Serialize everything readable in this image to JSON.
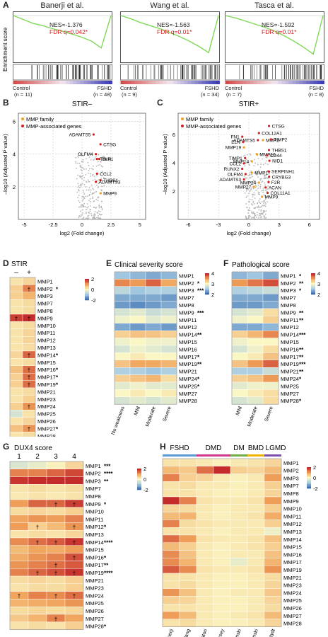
{
  "panels": {
    "a": "A",
    "b": "B",
    "c": "C",
    "d": "D",
    "e": "E",
    "f": "F",
    "g": "G",
    "h": "H"
  },
  "gsea": {
    "ylabel": "Enrichment score",
    "control_label": "Control",
    "fshd_label": "FSHD",
    "plots": [
      {
        "title": "Banerji et al.",
        "nes": "NES=-1.376",
        "fdr": "FDR q=0.042*",
        "n_control": "(n = 11)",
        "n_fshd": "(n = 48)"
      },
      {
        "title": "Wang et al.",
        "nes": "NES=-1.563",
        "fdr": "FDR q=0.01*",
        "n_control": "(n = 9)",
        "n_fshd": "(n = 34)"
      },
      {
        "title": "Tasca et al.",
        "nes": "NES=-1.592",
        "fdr": "FDR q=0.01*",
        "n_control": "(n = 7)",
        "n_fshd": "(n = 8)"
      }
    ]
  },
  "volcano": {
    "ylabel": "–log10 (Adjusted P value)",
    "xlabel": "log2 (Fold change)",
    "legend_family": "MMP family",
    "legend_assoc": "MMP-associated genes",
    "b": {
      "title": "STIR–",
      "xticks": [
        "-5",
        "-2.5",
        "0",
        "2.5",
        "5"
      ],
      "yticks": [
        "2",
        "4",
        "6"
      ],
      "labels": [
        "ADAMTS5",
        "CTSG",
        "OLFM4",
        "TIMP1",
        "ELN",
        "CCL2",
        "THBS1",
        "ADAMTS3",
        "MMP9"
      ]
    },
    "c": {
      "title": "STIR+",
      "xticks": [
        "-6",
        "-3",
        "0",
        "3",
        "6"
      ],
      "yticks": [
        "2",
        "4",
        "6"
      ],
      "labels": [
        "CTSG",
        "COL12A1",
        "ADAMTS5",
        "MMP2",
        "FN1",
        "TIMP2",
        "ELN",
        "MMP16",
        "MMP19",
        "THBS1",
        "MMP14",
        "CD44",
        "TIMP1",
        "NID1",
        "CCL2",
        "MMP17",
        "RUNX2",
        "SERPINH1",
        "OLFM4",
        "CRYBG3",
        "ADAMTS3",
        "F2R",
        "MMP24",
        "ACAN",
        "MMP27",
        "COL11A1",
        "MMP9"
      ]
    }
  },
  "genes": [
    "MMP1",
    "MMP2",
    "MMP3",
    "MMP7",
    "MMP8",
    "MMP9",
    "MMP10",
    "MMP11",
    "MMP12",
    "MMP13",
    "MMP14",
    "MMP15",
    "MMP16",
    "MMP17",
    "MMP19",
    "MMP21",
    "MMP23",
    "MMP24",
    "MMP25",
    "MMP26",
    "MMP27",
    "MMP28"
  ],
  "genes_e": [
    "MMP1",
    "MMP2",
    "MMP3",
    "MMP7",
    "MMP8",
    "MMP9",
    "MMP11",
    "MMP12",
    "MMP14",
    "MMP15",
    "MMP16",
    "MMP17",
    "MMP19",
    "MMP21",
    "MMP24",
    "MMP25",
    "MMP27",
    "MMP28"
  ],
  "heat_d": {
    "title": "STIR",
    "cols": [
      "–",
      "+"
    ],
    "stars": [
      "",
      "*",
      "",
      "",
      "",
      "",
      "",
      "",
      "",
      "",
      "*",
      "",
      "*",
      "*",
      "*",
      "",
      "",
      "",
      "",
      "",
      "*",
      ""
    ],
    "legend": [
      "2",
      "0",
      "-2"
    ]
  },
  "heat_e": {
    "title": "Clinical severity score",
    "cols": [
      "No weakness",
      "Mild",
      "Moderate",
      "Severe"
    ],
    "stars": [
      "",
      "*",
      "***",
      "",
      "",
      "***",
      "",
      "",
      "**",
      "",
      "",
      "*",
      "**",
      "",
      "*",
      "*",
      "",
      ""
    ],
    "legend": [
      "4",
      "3",
      "2"
    ]
  },
  "heat_f": {
    "title": "Pathological score",
    "cols": [
      "Mild",
      "Moderate",
      "Severe"
    ],
    "stars": [
      "*",
      "**",
      "*",
      "",
      "",
      "**",
      "**",
      "",
      "***",
      "",
      "**",
      "**",
      "***",
      "**",
      "*",
      "",
      "",
      "*"
    ],
    "legend": [
      "4",
      "3",
      "2"
    ]
  },
  "heat_g": {
    "title": "DUX4 score",
    "cols": [
      "1",
      "2",
      "3",
      "4"
    ],
    "stars": [
      "***",
      "****",
      "**",
      "",
      "",
      "*",
      "",
      "",
      "*",
      "",
      "****",
      "",
      "*",
      "**",
      "****",
      "",
      "",
      "",
      "",
      "",
      "",
      "*"
    ],
    "legend": [
      "2",
      "0",
      "-2"
    ]
  },
  "heat_h": {
    "groups": [
      "FSHD",
      "DMD",
      "DM",
      "BMD",
      "LGMD"
    ],
    "cols": [
      "Banerji",
      "Wang",
      "Pescatori",
      "Dorsey",
      "Bachinski",
      "Bachinski",
      "Deputydt"
    ],
    "legend": [
      "2",
      "0",
      "-2"
    ]
  },
  "chart_data": [
    {
      "type": "line",
      "title": "Banerji et al.",
      "ylabel": "Enrichment score",
      "annotations": [
        "NES=-1.376",
        "FDR q=0.042*"
      ],
      "x": [
        0,
        0.1,
        0.2,
        0.3,
        0.4,
        0.5,
        0.6,
        0.7,
        0.8,
        0.9,
        1.0
      ],
      "values": [
        0,
        -0.05,
        -0.1,
        -0.13,
        -0.17,
        -0.2,
        -0.24,
        -0.28,
        -0.33,
        -0.42,
        0
      ]
    },
    {
      "type": "line",
      "title": "Wang et al.",
      "annotations": [
        "NES=-1.563",
        "FDR q=0.01*"
      ],
      "x": [
        0,
        0.1,
        0.2,
        0.3,
        0.4,
        0.5,
        0.6,
        0.7,
        0.8,
        0.9,
        1.0
      ],
      "values": [
        0,
        -0.04,
        -0.09,
        -0.13,
        -0.17,
        -0.22,
        -0.27,
        -0.33,
        -0.4,
        -0.48,
        0
      ]
    },
    {
      "type": "line",
      "title": "Tasca et al.",
      "annotations": [
        "NES=-1.592",
        "FDR q=0.01*"
      ],
      "x": [
        0,
        0.1,
        0.2,
        0.3,
        0.4,
        0.5,
        0.6,
        0.7,
        0.8,
        0.9,
        1.0
      ],
      "values": [
        0,
        -0.03,
        -0.07,
        -0.11,
        -0.15,
        -0.2,
        -0.26,
        -0.33,
        -0.41,
        -0.5,
        0
      ]
    },
    {
      "type": "scatter",
      "title": "STIR–",
      "xlim": [
        -5,
        5
      ],
      "ylim": [
        0,
        6.5
      ],
      "labeled_points": [
        {
          "name": "ADAMTS5",
          "x": 1.0,
          "y": 5.2
        },
        {
          "name": "CTSG",
          "x": 1.6,
          "y": 4.6
        },
        {
          "name": "OLFM4",
          "x": 1.2,
          "y": 4.0
        },
        {
          "name": "TIMP1",
          "x": 1.3,
          "y": 3.7
        },
        {
          "name": "ELN",
          "x": 1.5,
          "y": 3.7
        },
        {
          "name": "CCL2",
          "x": 1.3,
          "y": 2.8
        },
        {
          "name": "THBS1",
          "x": 1.6,
          "y": 2.4
        },
        {
          "name": "ADAMTS3",
          "x": 1.2,
          "y": 2.3
        },
        {
          "name": "MMP9",
          "x": 1.6,
          "y": 1.6
        }
      ]
    },
    {
      "type": "scatter",
      "title": "STIR+",
      "xlim": [
        -6,
        6
      ],
      "ylim": [
        0,
        7.5
      ],
      "labeled_points": [
        {
          "name": "CTSG",
          "x": 2.0,
          "y": 6.6
        },
        {
          "name": "COL12A1",
          "x": 1.0,
          "y": 6.1
        },
        {
          "name": "ADAMTS5",
          "x": 0.9,
          "y": 5.6
        },
        {
          "name": "MMP2",
          "x": 1.4,
          "y": 5.6
        },
        {
          "name": "MMP16",
          "x": 0.8,
          "y": 4.6
        },
        {
          "name": "MMP14",
          "x": 0.3,
          "y": 4.1
        },
        {
          "name": "MMP17",
          "x": 0.3,
          "y": 3.3
        },
        {
          "name": "MMP24",
          "x": 1.0,
          "y": 2.6
        },
        {
          "name": "MMP27",
          "x": 0.5,
          "y": 2.3
        },
        {
          "name": "MMP9",
          "x": 1.3,
          "y": 1.6
        }
      ]
    },
    {
      "type": "heatmap",
      "title": "STIR",
      "columns": [
        "–",
        "+"
      ],
      "rows": [
        "MMP1",
        "MMP2",
        "MMP3",
        "MMP7",
        "MMP8",
        "MMP9",
        "MMP10",
        "MMP11",
        "MMP12",
        "MMP13",
        "MMP14",
        "MMP15",
        "MMP16",
        "MMP17",
        "MMP19",
        "MMP21",
        "MMP23",
        "MMP24",
        "MMP25",
        "MMP26",
        "MMP27",
        "MMP28"
      ],
      "values": [
        [
          0.3,
          0.5
        ],
        [
          0.6,
          1.6
        ],
        [
          0.6,
          1.0
        ],
        [
          0.3,
          0.4
        ],
        [
          0.3,
          0.4
        ],
        [
          2.3,
          2.6
        ],
        [
          0.3,
          0.4
        ],
        [
          0.3,
          0.5
        ],
        [
          0.3,
          0.5
        ],
        [
          0.3,
          0.4
        ],
        [
          0.5,
          1.9
        ],
        [
          0.3,
          0.4
        ],
        [
          0.8,
          1.8
        ],
        [
          0.6,
          1.8
        ],
        [
          0.6,
          1.8
        ],
        [
          0.3,
          0.4
        ],
        [
          0.3,
          0.6
        ],
        [
          0.6,
          1.4
        ],
        [
          -0.6,
          0.3
        ],
        [
          0.3,
          0.5
        ],
        [
          0.8,
          1.4
        ],
        [
          0.3,
          0.4
        ]
      ]
    },
    {
      "type": "heatmap",
      "title": "Clinical severity score",
      "columns": [
        "No weakness",
        "Mild",
        "Moderate",
        "Severe"
      ],
      "rows": [
        "MMP1",
        "MMP2",
        "MMP3",
        "MMP7",
        "MMP8",
        "MMP9",
        "MMP11",
        "MMP12",
        "MMP14",
        "MMP15",
        "MMP16",
        "MMP17",
        "MMP19",
        "MMP21",
        "MMP24",
        "MMP25",
        "MMP27",
        "MMP28"
      ],
      "values": [
        [
          2.2,
          2.1,
          2.0,
          2.1
        ],
        [
          3.7,
          3.6,
          3.9,
          3.5
        ],
        [
          2.4,
          2.2,
          2.3,
          2.3
        ],
        [
          2.0,
          2.0,
          2.0,
          1.9
        ],
        [
          1.9,
          1.8,
          1.9,
          2.0
        ],
        [
          2.6,
          2.7,
          2.5,
          2.6
        ],
        [
          2.8,
          2.9,
          2.7,
          2.8
        ],
        [
          2.0,
          1.9,
          2.0,
          1.9
        ],
        [
          3.2,
          3.3,
          3.3,
          3.2
        ],
        [
          2.8,
          2.9,
          2.8,
          2.8
        ],
        [
          2.6,
          2.8,
          2.7,
          2.6
        ],
        [
          2.9,
          3.0,
          2.9,
          2.9
        ],
        [
          3.3,
          3.5,
          3.5,
          3.4
        ],
        [
          2.3,
          2.3,
          2.2,
          2.3
        ],
        [
          3.2,
          3.3,
          3.4,
          3.1
        ],
        [
          2.7,
          2.8,
          2.7,
          2.7
        ],
        [
          2.9,
          3.0,
          2.9,
          3.0
        ],
        [
          2.6,
          2.7,
          2.6,
          2.7
        ]
      ]
    },
    {
      "type": "heatmap",
      "title": "Pathological score",
      "columns": [
        "Mild",
        "Moderate",
        "Severe"
      ],
      "rows": [
        "MMP1",
        "MMP2",
        "MMP3",
        "MMP7",
        "MMP8",
        "MMP9",
        "MMP11",
        "MMP12",
        "MMP14",
        "MMP15",
        "MMP16",
        "MMP17",
        "MMP19",
        "MMP21",
        "MMP24",
        "MMP25",
        "MMP27",
        "MMP28"
      ],
      "values": [
        [
          2.1,
          2.2,
          2.0
        ],
        [
          3.6,
          3.8,
          4.0
        ],
        [
          2.3,
          2.4,
          2.5
        ],
        [
          2.0,
          2.0,
          1.9
        ],
        [
          1.9,
          1.9,
          2.0
        ],
        [
          2.6,
          2.7,
          3.1
        ],
        [
          2.8,
          2.9,
          3.2
        ],
        [
          2.0,
          2.0,
          2.1
        ],
        [
          3.2,
          3.4,
          3.7
        ],
        [
          2.8,
          2.9,
          2.9
        ],
        [
          2.6,
          2.8,
          3.1
        ],
        [
          2.9,
          3.0,
          3.3
        ],
        [
          3.3,
          3.6,
          3.9
        ],
        [
          2.3,
          2.3,
          2.5
        ],
        [
          3.2,
          3.3,
          3.6
        ],
        [
          2.7,
          2.8,
          2.8
        ],
        [
          2.9,
          3.0,
          3.1
        ],
        [
          2.6,
          2.7,
          3.1
        ]
      ]
    },
    {
      "type": "heatmap",
      "title": "DUX4 score",
      "columns": [
        "1",
        "2",
        "3",
        "4"
      ],
      "rows": [
        "MMP1",
        "MMP2",
        "MMP3",
        "MMP7",
        "MMP8",
        "MMP9",
        "MMP10",
        "MMP11",
        "MMP12",
        "MMP13",
        "MMP14",
        "MMP15",
        "MMP16",
        "MMP17",
        "MMP19",
        "MMP21",
        "MMP23",
        "MMP24",
        "MMP25",
        "MMP26",
        "MMP27",
        "MMP28"
      ],
      "values": [
        [
          -0.5,
          -0.3,
          0.1,
          0.5
        ],
        [
          1.6,
          1.6,
          1.9,
          2.2
        ],
        [
          2.4,
          2.5,
          2.5,
          2.6
        ],
        [
          0.3,
          0.4,
          0.3,
          0.4
        ],
        [
          0.2,
          0.3,
          0.2,
          0.3
        ],
        [
          1.3,
          1.9,
          1.9,
          2.3
        ],
        [
          0.4,
          0.5,
          0.4,
          0.6
        ],
        [
          1.2,
          1.4,
          1.3,
          1.6
        ],
        [
          1.3,
          0.6,
          0.9,
          1.4
        ],
        [
          0.3,
          0.4,
          0.3,
          0.5
        ],
        [
          1.5,
          1.8,
          2.0,
          2.4
        ],
        [
          0.9,
          1.2,
          1.1,
          1.3
        ],
        [
          1.1,
          1.4,
          1.6,
          2.1
        ],
        [
          1.4,
          1.6,
          1.8,
          2.0
        ],
        [
          1.6,
          1.9,
          2.1,
          2.4
        ],
        [
          0.4,
          0.5,
          0.4,
          0.6
        ],
        [
          0.3,
          0.4,
          0.4,
          0.6
        ],
        [
          1.2,
          1.6,
          1.5,
          1.8
        ],
        [
          1.0,
          1.1,
          1.2,
          1.4
        ],
        [
          0.4,
          0.5,
          0.4,
          0.5
        ],
        [
          0.7,
          1.0,
          1.6,
          1.2
        ],
        [
          0.3,
          0.4,
          0.3,
          0.6
        ]
      ]
    },
    {
      "type": "heatmap",
      "columns": [
        "Banerji",
        "Wang",
        "Pescatori",
        "Dorsey",
        "Bachinski",
        "Bachinski",
        "Deputydt"
      ],
      "rows": [
        "MMP1",
        "MMP2",
        "MMP3",
        "MMP7",
        "MMP8",
        "MMP9",
        "MMP10",
        "MMP11",
        "MMP12",
        "MMP13",
        "MMP14",
        "MMP15",
        "MMP16",
        "MMP17",
        "MMP19",
        "MMP21",
        "MMP23",
        "MMP24",
        "MMP25",
        "MMP26",
        "MMP27",
        "MMP28"
      ],
      "values": [
        [
          0.3,
          0.3,
          0.2,
          0.1,
          0.2,
          0.3,
          0.5
        ],
        [
          0.9,
          0.7,
          1.8,
          2.5,
          0.6,
          0.5,
          0.9
        ],
        [
          1.6,
          0.6,
          0.5,
          0.2,
          0.1,
          0.2,
          1.3
        ],
        [
          0.3,
          0.4,
          0.2,
          0.2,
          0.1,
          0.2,
          0.6
        ],
        [
          0.3,
          0.3,
          0.2,
          0.1,
          0.1,
          0.2,
          0.5
        ],
        [
          2.6,
          1.6,
          0.3,
          0.2,
          0.2,
          0.3,
          1.3
        ],
        [
          0.5,
          0.4,
          0.2,
          0.1,
          0.2,
          0.2,
          0.6
        ],
        [
          0.9,
          1.0,
          0.2,
          0.1,
          0.2,
          0.3,
          1.1
        ],
        [
          1.6,
          0.4,
          0.3,
          0.2,
          0.2,
          0.2,
          0.6
        ],
        [
          0.3,
          0.3,
          0.2,
          0.1,
          0.2,
          0.2,
          -0.2
        ],
        [
          1.8,
          1.3,
          0.3,
          0.2,
          0.2,
          0.3,
          0.8
        ],
        [
          0.9,
          0.6,
          0.2,
          0.1,
          0.2,
          0.3,
          0.6
        ],
        [
          1.5,
          0.8,
          0.2,
          0.1,
          0.2,
          0.2,
          0.8
        ],
        [
          1.5,
          1.0,
          0.2,
          0.1,
          -0.3,
          0.2,
          1.0
        ],
        [
          2.0,
          1.5,
          0.3,
          0.2,
          0.2,
          0.3,
          1.4
        ],
        [
          0.3,
          0.3,
          0.2,
          0.1,
          0.1,
          0.2,
          0.4
        ],
        [
          0.3,
          0.4,
          0.2,
          0.1,
          0.1,
          0.2,
          0.5
        ],
        [
          1.4,
          0.8,
          0.2,
          0.1,
          0.2,
          0.2,
          0.7
        ],
        [
          0.6,
          0.5,
          0.2,
          0.1,
          0.1,
          0.2,
          0.5
        ],
        [
          0.3,
          0.3,
          0.2,
          0.1,
          0.1,
          0.2,
          0.4
        ],
        [
          1.3,
          0.9,
          0.2,
          0.1,
          0.2,
          0.3,
          0.9
        ],
        [
          0.3,
          0.4,
          0.2,
          0.1,
          0.1,
          0.2,
          0.5
        ]
      ]
    }
  ]
}
